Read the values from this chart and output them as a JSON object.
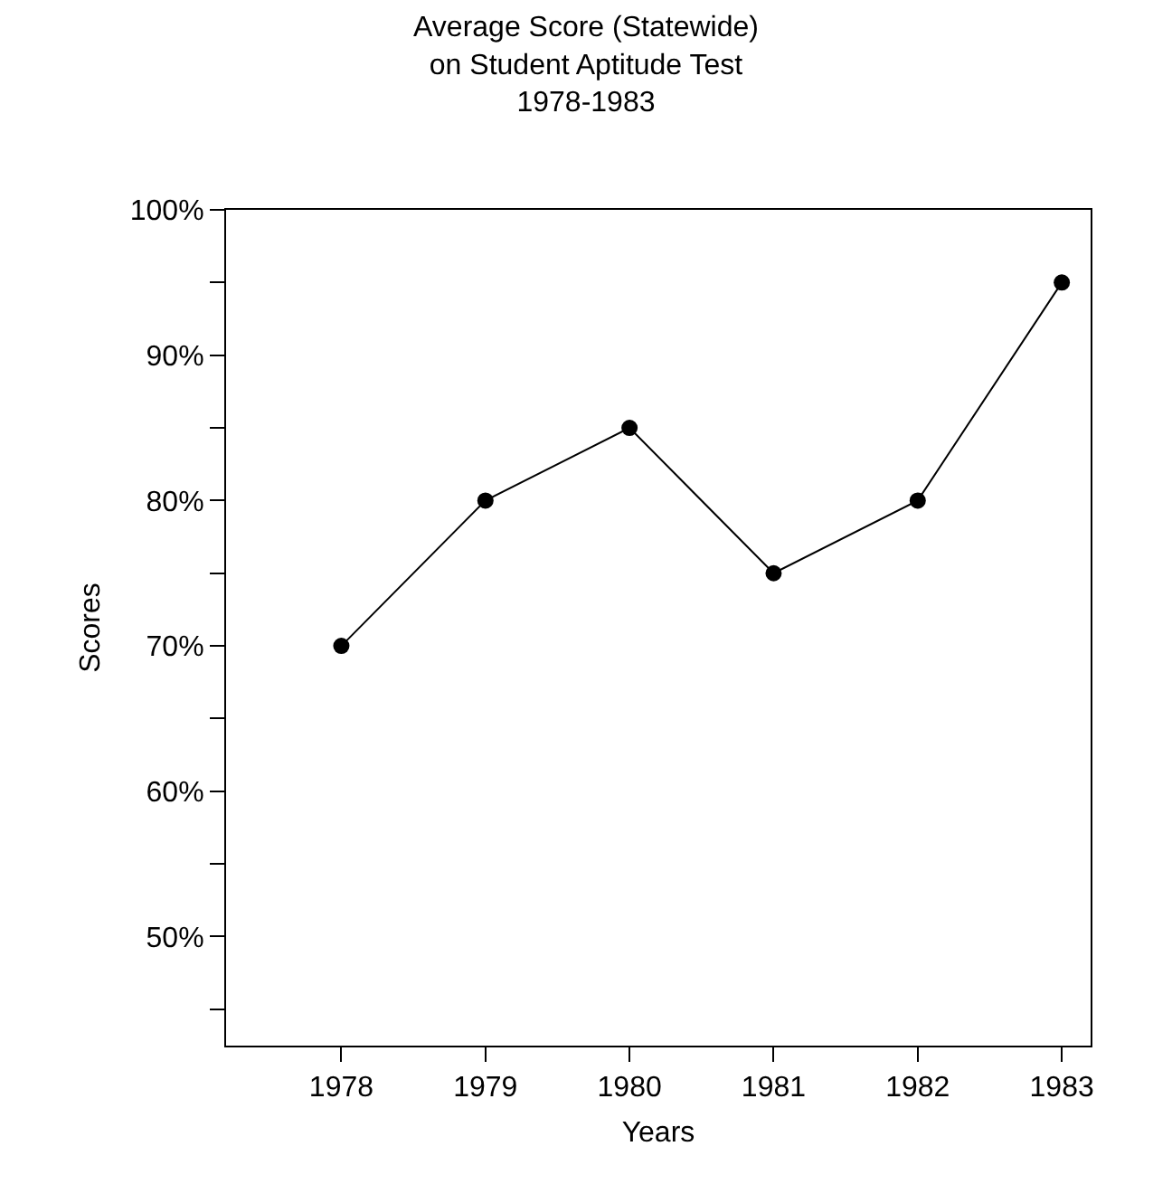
{
  "chart_data": {
    "type": "line",
    "title": "Average Score (Statewide)\non Student Aptitude Test\n1978-1983",
    "xlabel": "Years",
    "ylabel": "Scores",
    "x": [
      1978,
      1979,
      1980,
      1981,
      1982,
      1983
    ],
    "series": [
      {
        "color": "#000000",
        "values": [
          70,
          80,
          85,
          75,
          80,
          95
        ]
      }
    ],
    "xlim": [
      1977.2,
      1983.2
    ],
    "xticks": [
      1978,
      1979,
      1980,
      1981,
      1982,
      1983
    ],
    "ylim": [
      42.5,
      100
    ],
    "yticks": [
      {
        "value": 45,
        "label": null
      },
      {
        "value": 50,
        "label": "50%"
      },
      {
        "value": 55,
        "label": null
      },
      {
        "value": 60,
        "label": "60%"
      },
      {
        "value": 65,
        "label": null
      },
      {
        "value": 70,
        "label": "70%"
      },
      {
        "value": 75,
        "label": null
      },
      {
        "value": 80,
        "label": "80%"
      },
      {
        "value": 85,
        "label": null
      },
      {
        "value": 90,
        "label": "90%"
      },
      {
        "value": 95,
        "label": null
      },
      {
        "value": 100,
        "label": "100%"
      }
    ],
    "marker": "circle",
    "line_style": "solid"
  }
}
